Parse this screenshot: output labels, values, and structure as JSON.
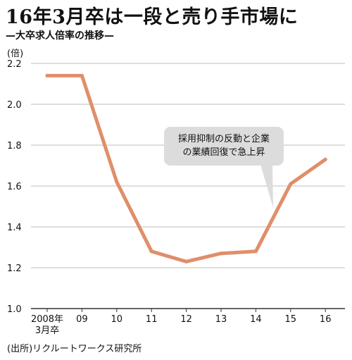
{
  "title": "16年3月卒は一段と売り手市場に",
  "subtitle": "—大卒求人倍率の推移—",
  "unit": "(倍)",
  "source": "(出所)リクルートワークス研究所",
  "annotation": [
    "採用抑制の反動と企業",
    "の業績回復で急上昇"
  ],
  "colors": {
    "line": "#e08e6a",
    "grid": "#bdbdbd",
    "callout": "#dcdcdc"
  },
  "chart_data": {
    "type": "line",
    "categories": [
      "2008年\n3月卒",
      "09",
      "10",
      "11",
      "12",
      "13",
      "14",
      "15",
      "16"
    ],
    "values": [
      2.14,
      2.14,
      1.62,
      1.28,
      1.23,
      1.27,
      1.28,
      1.61,
      1.73
    ],
    "ylim": [
      1.0,
      2.2
    ],
    "yticks": [
      "1.0",
      "1.2",
      "1.4",
      "1.6",
      "1.8",
      "2.0",
      "2.2"
    ],
    "ylabel": "(倍)",
    "grid": true
  }
}
